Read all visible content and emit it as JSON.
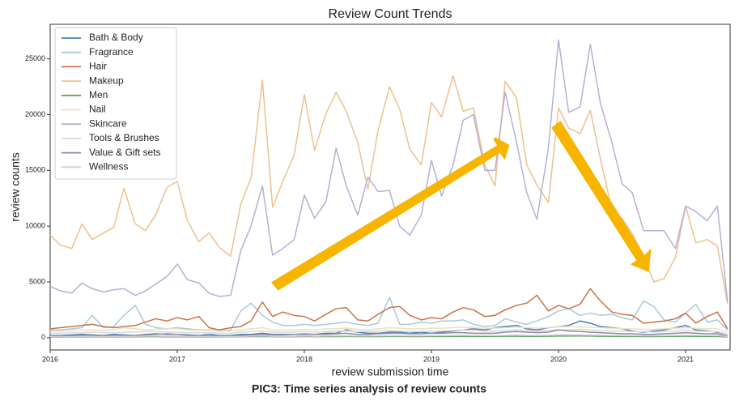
{
  "chart_data": {
    "type": "line",
    "title": "Review Count Trends",
    "xlabel": "review submission time",
    "ylabel": "review counts",
    "caption": "PIC3: Time series analysis of review counts",
    "legend": "upper left",
    "xlim": [
      2016,
      2021.35
    ],
    "xticks": [
      2016,
      2017,
      2018,
      2019,
      2020,
      2021
    ],
    "ylim": [
      -1100,
      28100
    ],
    "yticks": [
      0,
      5000,
      10000,
      15000,
      20000,
      25000
    ],
    "x": [
      2016.0,
      2016.08,
      2016.17,
      2016.25,
      2016.33,
      2016.42,
      2016.5,
      2016.58,
      2016.67,
      2016.75,
      2016.83,
      2016.92,
      2017.0,
      2017.08,
      2017.17,
      2017.25,
      2017.33,
      2017.42,
      2017.5,
      2017.58,
      2017.67,
      2017.75,
      2017.83,
      2017.92,
      2018.0,
      2018.08,
      2018.17,
      2018.25,
      2018.33,
      2018.42,
      2018.5,
      2018.58,
      2018.67,
      2018.75,
      2018.83,
      2018.92,
      2019.0,
      2019.08,
      2019.17,
      2019.25,
      2019.33,
      2019.42,
      2019.5,
      2019.58,
      2019.67,
      2019.75,
      2019.83,
      2019.92,
      2020.0,
      2020.08,
      2020.17,
      2020.25,
      2020.33,
      2020.42,
      2020.5,
      2020.58,
      2020.67,
      2020.75,
      2020.83,
      2020.92,
      2021.0,
      2021.08,
      2021.17,
      2021.25,
      2021.33
    ],
    "series": [
      {
        "name": "Bath & Body",
        "color": "#4a7fb5",
        "values": [
          200,
          200,
          250,
          300,
          250,
          200,
          300,
          250,
          200,
          300,
          350,
          300,
          300,
          250,
          200,
          300,
          200,
          200,
          300,
          300,
          400,
          300,
          300,
          300,
          300,
          300,
          400,
          400,
          700,
          500,
          400,
          400,
          500,
          500,
          400,
          500,
          400,
          500,
          600,
          700,
          800,
          700,
          900,
          1000,
          1100,
          800,
          700,
          900,
          1000,
          1100,
          1500,
          1300,
          1000,
          900,
          800,
          600,
          500,
          600,
          700,
          900,
          1100,
          700,
          600,
          500,
          300
        ]
      },
      {
        "name": "Fragrance",
        "color": "#a9c9dc",
        "values": [
          700,
          700,
          800,
          900,
          2000,
          900,
          1000,
          2000,
          2900,
          1200,
          900,
          800,
          900,
          800,
          700,
          700,
          600,
          700,
          2400,
          3100,
          2000,
          1400,
          1100,
          1100,
          1200,
          1100,
          1200,
          1300,
          1400,
          1200,
          1100,
          1300,
          3600,
          1200,
          1200,
          1400,
          1300,
          1500,
          1500,
          1600,
          1200,
          1000,
          1100,
          1700,
          1400,
          1200,
          1500,
          1900,
          2400,
          2600,
          2000,
          2200,
          2000,
          2100,
          1800,
          1600,
          3300,
          2800,
          1600,
          1400,
          2200,
          3000,
          1400,
          1600,
          700
        ]
      },
      {
        "name": "Hair",
        "color": "#c8744a",
        "values": [
          800,
          900,
          1000,
          1100,
          1200,
          1000,
          900,
          1000,
          1100,
          1400,
          1700,
          1500,
          1800,
          1600,
          1900,
          900,
          700,
          900,
          1000,
          1500,
          3200,
          1900,
          2300,
          2000,
          1900,
          1500,
          2100,
          2600,
          2700,
          1600,
          1500,
          2100,
          2700,
          2800,
          2000,
          1600,
          1800,
          1700,
          2300,
          2700,
          2500,
          1900,
          2000,
          2500,
          2900,
          3100,
          3800,
          2400,
          2900,
          2600,
          3000,
          4400,
          3300,
          2300,
          2100,
          2000,
          1300,
          1400,
          1500,
          1700,
          2200,
          1300,
          1900,
          2300,
          800
        ]
      },
      {
        "name": "Makeup",
        "color": "#f0c08e",
        "values": [
          9200,
          8300,
          8000,
          10200,
          8800,
          9400,
          9900,
          13400,
          10200,
          9600,
          11000,
          13500,
          14000,
          10500,
          8600,
          9400,
          8100,
          7300,
          12000,
          14300,
          23100,
          11700,
          14000,
          16400,
          21800,
          16800,
          20100,
          22000,
          20300,
          17500,
          13300,
          18600,
          22500,
          20500,
          16900,
          15500,
          21100,
          19800,
          23500,
          20300,
          20600,
          15500,
          13600,
          23000,
          21500,
          15500,
          13700,
          12100,
          20600,
          18800,
          18300,
          20400,
          16000,
          11500,
          10700,
          9300,
          7300,
          5000,
          5300,
          7200,
          11800,
          8500,
          8800,
          8200,
          3000
        ]
      },
      {
        "name": "Men",
        "color": "#5fa35f",
        "values": [
          60,
          60,
          70,
          70,
          80,
          70,
          70,
          80,
          80,
          90,
          90,
          80,
          80,
          80,
          70,
          70,
          70,
          80,
          90,
          100,
          110,
          90,
          90,
          90,
          100,
          90,
          100,
          100,
          110,
          100,
          100,
          100,
          110,
          110,
          100,
          100,
          110,
          110,
          120,
          120,
          110,
          110,
          120,
          130,
          130,
          120,
          120,
          130,
          140,
          140,
          150,
          140,
          130,
          120,
          110,
          110,
          100,
          100,
          110,
          120,
          130,
          120,
          110,
          110,
          60
        ]
      },
      {
        "name": "Nail",
        "color": "#ece0bf",
        "values": [
          600,
          600,
          650,
          700,
          700,
          650,
          700,
          900,
          800,
          700,
          750,
          800,
          800,
          700,
          650,
          650,
          600,
          600,
          700,
          800,
          900,
          700,
          700,
          700,
          750,
          700,
          800,
          800,
          850,
          750,
          700,
          800,
          900,
          850,
          800,
          800,
          850,
          850,
          900,
          950,
          900,
          850,
          850,
          900,
          950,
          900,
          850,
          900,
          1000,
          1000,
          950,
          950,
          900,
          850,
          800,
          800,
          750,
          750,
          800,
          850,
          900,
          850,
          800,
          800,
          500
        ]
      },
      {
        "name": "Skincare",
        "color": "#b5b0d6",
        "values": [
          4600,
          4200,
          4000,
          4900,
          4400,
          4100,
          4300,
          4400,
          3800,
          4200,
          4800,
          5500,
          6600,
          5200,
          4900,
          4000,
          3700,
          3800,
          7800,
          10000,
          13600,
          7400,
          8000,
          8800,
          12800,
          10700,
          12200,
          17000,
          13600,
          11000,
          14400,
          13100,
          13200,
          10000,
          9200,
          11000,
          15900,
          12700,
          15500,
          19500,
          20000,
          15000,
          15000,
          22000,
          17500,
          13000,
          10600,
          17000,
          26700,
          20200,
          20700,
          26300,
          21000,
          17500,
          13800,
          13000,
          9600,
          9600,
          9600,
          8000,
          11800,
          11300,
          10500,
          11800,
          3200
        ]
      },
      {
        "name": "Tools & Brushes",
        "color": "#d9d9d9",
        "values": [
          400,
          400,
          450,
          450,
          500,
          450,
          450,
          500,
          500,
          550,
          550,
          500,
          500,
          450,
          450,
          450,
          400,
          400,
          500,
          550,
          600,
          500,
          500,
          500,
          550,
          500,
          550,
          600,
          600,
          550,
          550,
          600,
          650,
          600,
          550,
          550,
          600,
          600,
          650,
          700,
          650,
          600,
          600,
          650,
          700,
          650,
          600,
          650,
          700,
          700,
          750,
          700,
          650,
          600,
          600,
          550,
          550,
          500,
          550,
          600,
          650,
          600,
          550,
          550,
          300
        ]
      },
      {
        "name": "Value & Gift sets",
        "color": "#8f8aa3",
        "values": [
          150,
          150,
          150,
          200,
          200,
          150,
          200,
          200,
          200,
          250,
          300,
          350,
          300,
          200,
          150,
          150,
          150,
          150,
          200,
          250,
          300,
          250,
          250,
          300,
          350,
          300,
          300,
          350,
          400,
          300,
          300,
          350,
          400,
          400,
          350,
          350,
          400,
          400,
          450,
          450,
          400,
          400,
          400,
          500,
          550,
          500,
          450,
          500,
          700,
          600,
          550,
          500,
          450,
          400,
          350,
          350,
          300,
          300,
          350,
          400,
          450,
          400,
          350,
          350,
          150
        ]
      },
      {
        "name": "Wellness",
        "color": "#d8ccd8",
        "values": [
          100,
          100,
          100,
          120,
          120,
          100,
          120,
          120,
          120,
          140,
          140,
          130,
          130,
          120,
          110,
          110,
          100,
          100,
          120,
          140,
          160,
          130,
          130,
          130,
          150,
          130,
          150,
          160,
          170,
          150,
          150,
          160,
          180,
          170,
          160,
          160,
          180,
          180,
          200,
          210,
          200,
          190,
          190,
          210,
          230,
          210,
          200,
          220,
          260,
          250,
          240,
          230,
          220,
          200,
          190,
          180,
          170,
          170,
          180,
          200,
          220,
          200,
          190,
          190,
          100
        ]
      }
    ]
  }
}
